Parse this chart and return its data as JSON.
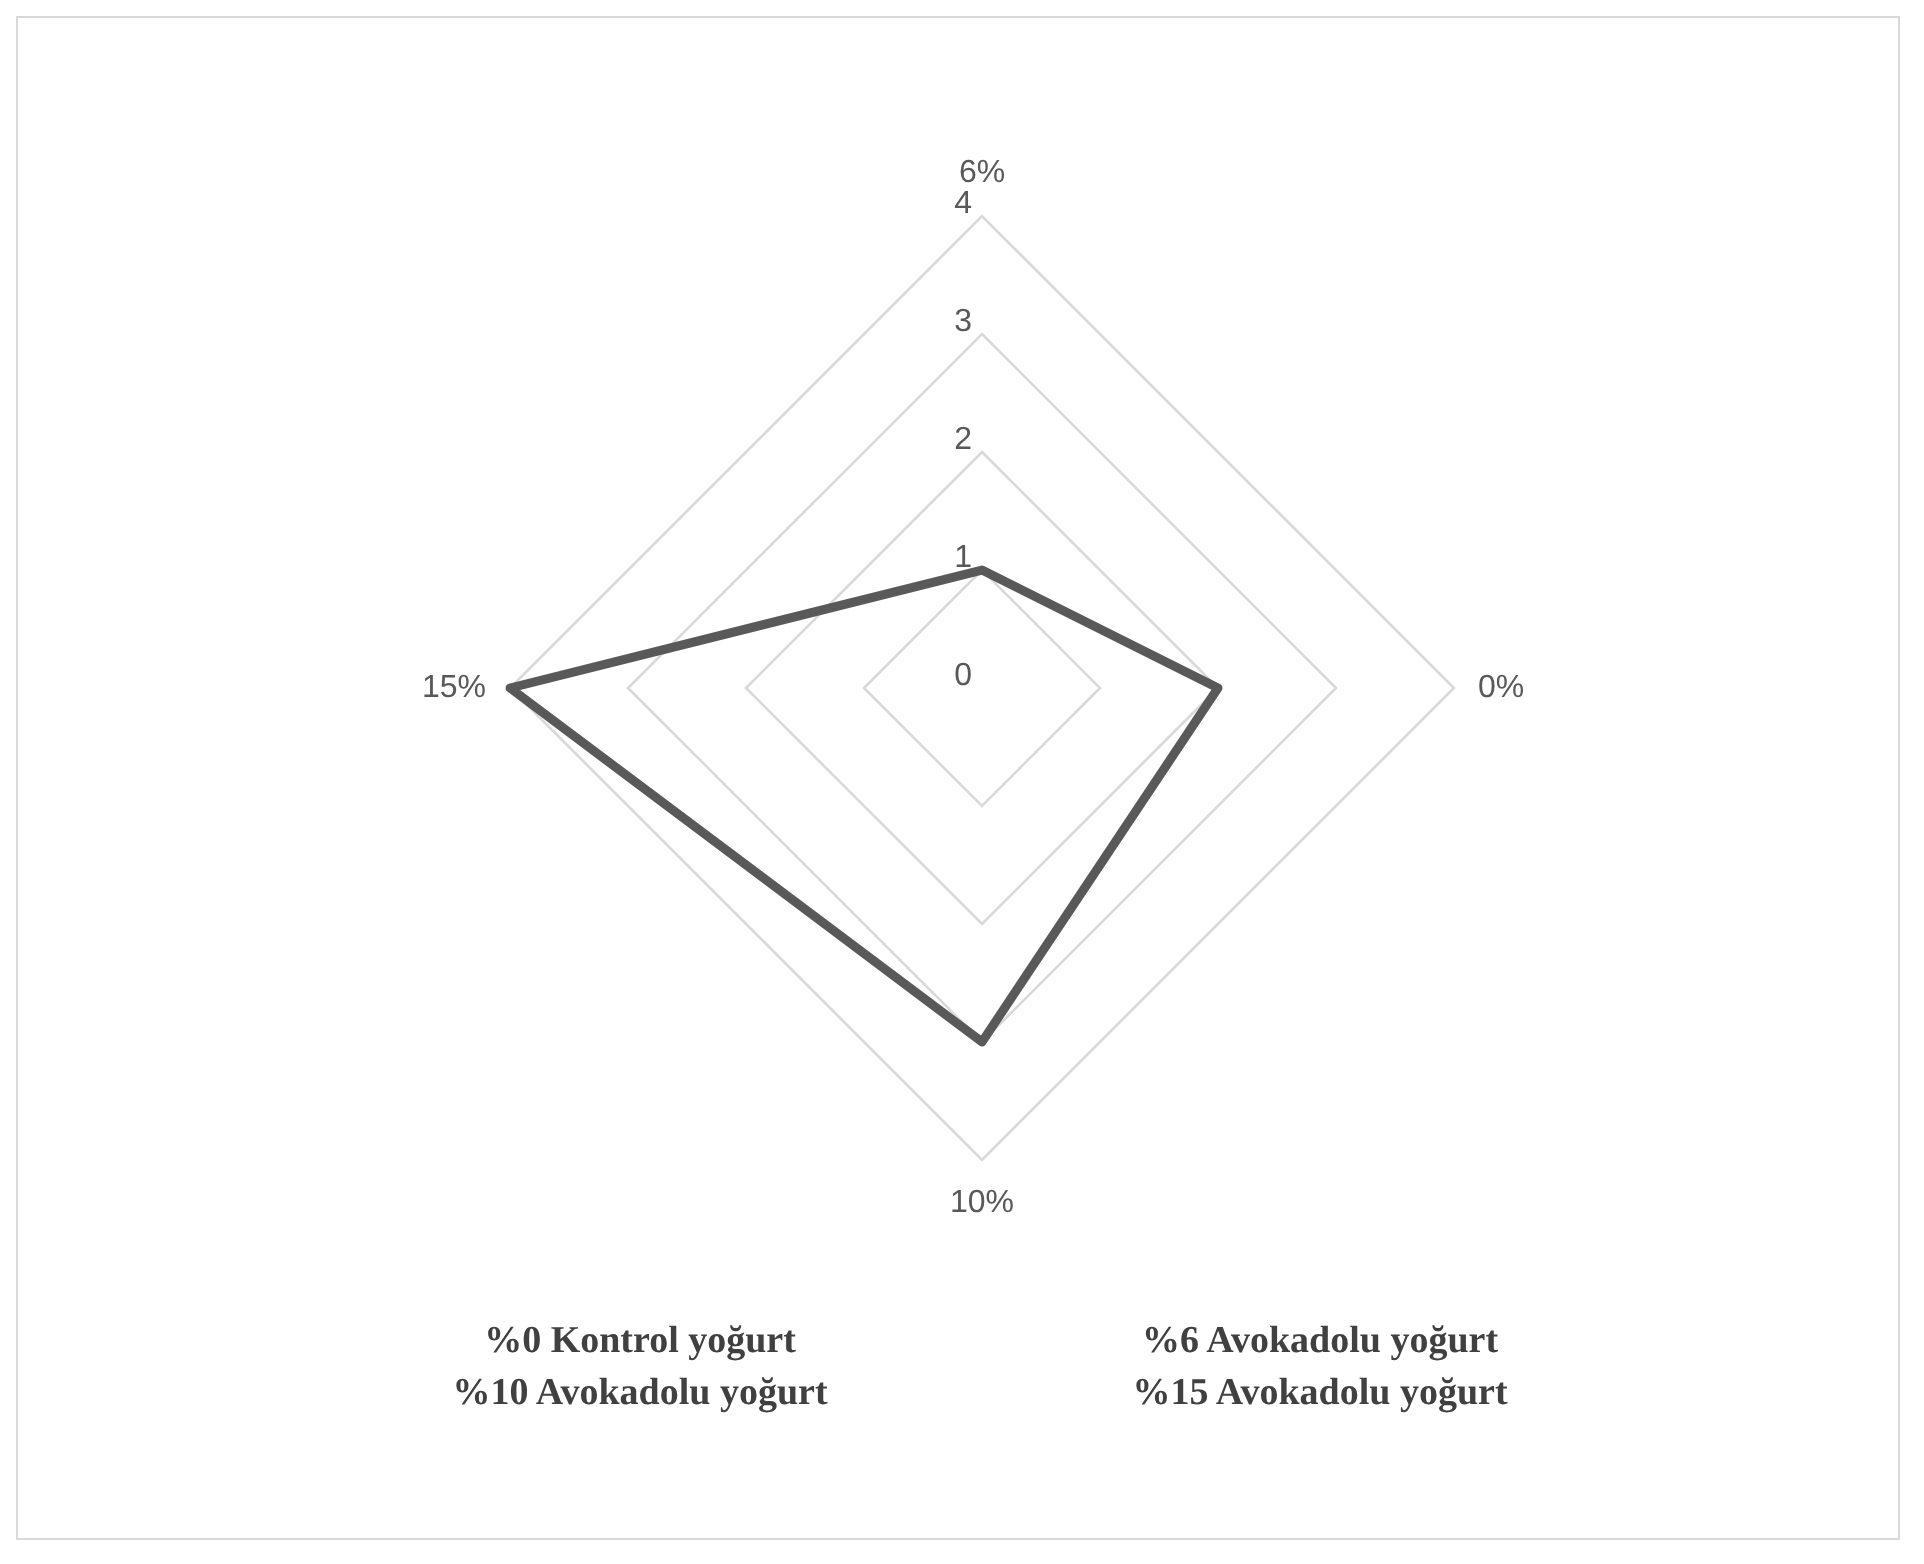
{
  "chart_data": {
    "type": "radar",
    "categories": [
      "6%",
      "0%",
      "10%",
      "15%"
    ],
    "series": [
      {
        "color": "#595959",
        "values": [
          1,
          2,
          3,
          4
        ]
      }
    ],
    "ylim": [
      0,
      4
    ],
    "yticks": [
      0,
      1,
      2,
      3,
      4
    ],
    "grid": true,
    "marker": "none",
    "line_style": "solid",
    "legend": false,
    "annotations": [
      "%0 Kontrol yoğurt",
      "%6 Avokadolu yoğurt",
      "%10 Avokadolu yoğurt",
      "%15 Avokadolu yoğurt"
    ]
  }
}
